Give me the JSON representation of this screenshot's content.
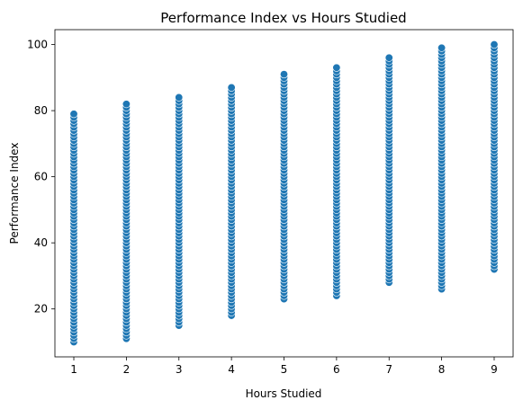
{
  "chart_data": {
    "type": "scatter",
    "title": "Performance Index vs Hours Studied",
    "xlabel": "Hours Studied",
    "ylabel": "Performance Index",
    "xlim": [
      0.64,
      9.36
    ],
    "ylim": [
      5.5,
      104.5
    ],
    "x_ticks": [
      "1",
      "2",
      "3",
      "4",
      "5",
      "6",
      "7",
      "8",
      "9"
    ],
    "y_ticks": [
      "20",
      "40",
      "60",
      "80",
      "100"
    ],
    "grid": false,
    "legend": "none",
    "marker_color": "#1f77b4",
    "marker_edge_color": "#ffffff",
    "series": [
      {
        "points": [
          {
            "x": 1,
            "min": 10,
            "max": 79
          },
          {
            "x": 2,
            "min": 11,
            "max": 82
          },
          {
            "x": 3,
            "min": 15,
            "max": 84
          },
          {
            "x": 4,
            "min": 18,
            "max": 87
          },
          {
            "x": 5,
            "min": 23,
            "max": 91
          },
          {
            "x": 6,
            "min": 24,
            "max": 93
          },
          {
            "x": 7,
            "min": 28,
            "max": 96
          },
          {
            "x": 8,
            "min": 26,
            "max": 99
          },
          {
            "x": 9,
            "min": 32,
            "max": 100
          }
        ]
      }
    ]
  }
}
